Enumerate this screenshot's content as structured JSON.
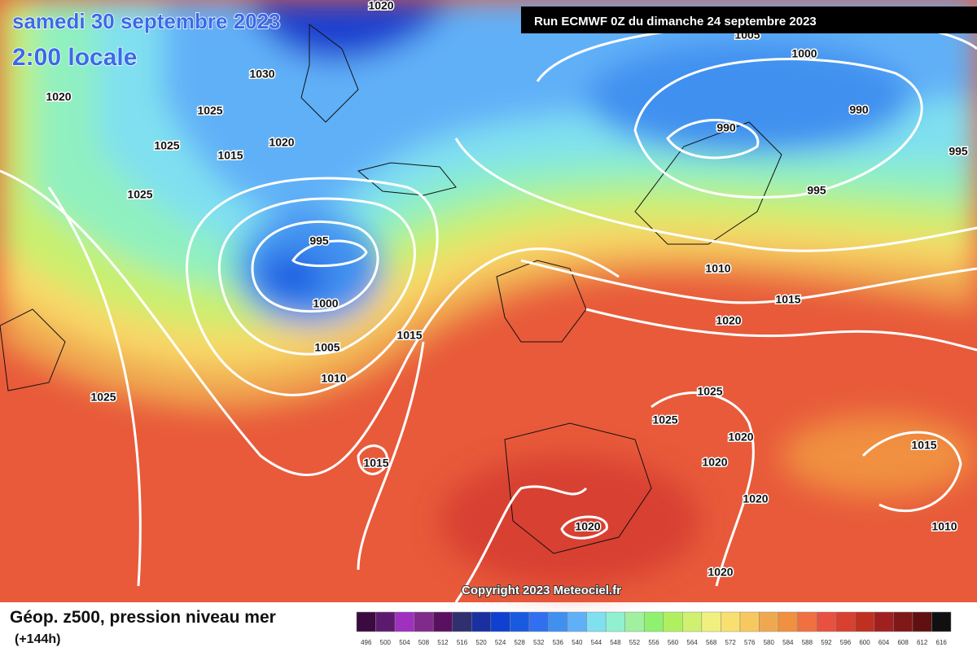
{
  "header": {
    "date": "samedi 30 septembre 2023",
    "time": "2:00 locale",
    "run": "Run ECMWF 0Z du dimanche 24 septembre 2023"
  },
  "map": {
    "isobar_labels": [
      1020,
      1030,
      1020,
      1025,
      1025,
      1015,
      1020,
      1025,
      995,
      1000,
      1005,
      1010,
      1015,
      1025,
      1015,
      1005,
      1000,
      990,
      990,
      995,
      995,
      1010,
      1015,
      1020,
      1025,
      1025,
      1020,
      1020,
      1020,
      1015,
      1010,
      1020,
      1020
    ],
    "copyright": "Copyright 2023 Meteociel.fr"
  },
  "footer": {
    "title": "Géop. z500, pression niveau mer",
    "lead": "(+144h)",
    "scale": {
      "values": [
        496,
        500,
        504,
        508,
        512,
        516,
        520,
        524,
        528,
        532,
        536,
        540,
        544,
        548,
        552,
        556,
        560,
        564,
        568,
        572,
        576,
        580,
        584,
        588,
        592,
        596,
        600,
        604,
        608,
        612,
        616
      ],
      "colors": [
        "#3a0a40",
        "#5c1a6e",
        "#a030c0",
        "#802b8c",
        "#5a1060",
        "#303070",
        "#1a30a0",
        "#1040d0",
        "#1a5ae0",
        "#3070f0",
        "#4090f0",
        "#60b0f8",
        "#80e0f0",
        "#90f0d0",
        "#a0f0a0",
        "#90f070",
        "#b0f060",
        "#d0f070",
        "#f0f080",
        "#f8e070",
        "#f8c860",
        "#f0a850",
        "#f09040",
        "#f07040",
        "#e85040",
        "#d84030",
        "#c03020",
        "#a02020",
        "#801818",
        "#601010",
        "#101010"
      ]
    }
  }
}
